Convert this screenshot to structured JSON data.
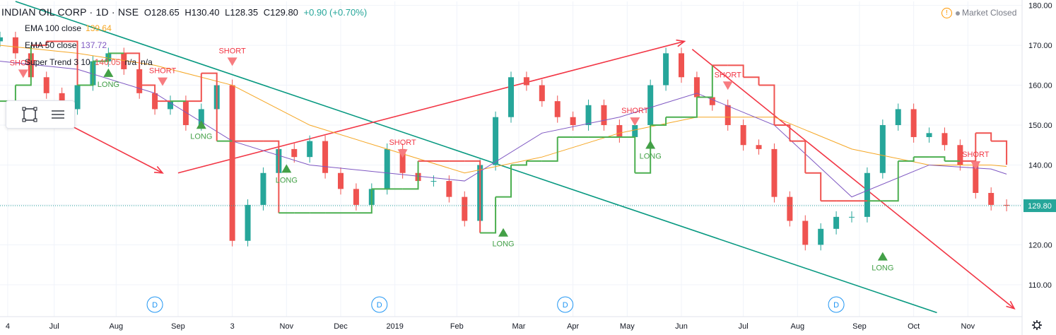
{
  "header": {
    "symbol": "INDIAN OIL CORP · 1D · NSE",
    "open": "O128.65",
    "high": "H130.40",
    "low": "L128.35",
    "close": "C129.80",
    "change": "+0.90 (+0.70%)"
  },
  "legend": [
    {
      "label": "EMA 100 close",
      "value": "139.64",
      "color": "#f5a623"
    },
    {
      "label": "EMA 50 close",
      "value": "137.72",
      "color": "#7e57c2"
    },
    {
      "label": "Super Trend 3 10",
      "value": "140.05",
      "extra": "n/a",
      "extra2": "n/a",
      "color": "#ef5350"
    }
  ],
  "market_status": "Market Closed",
  "colors": {
    "up": "#26a69a",
    "down": "#ef5350",
    "supertrend_up": "#4caf50",
    "supertrend_down": "#ef5350",
    "ema100": "#f5a623",
    "ema50": "#7e57c2",
    "trendline": "#089981",
    "arrow": "#f23645",
    "bg": "#ffffff"
  },
  "icons": [
    "rectangle-tool-icon",
    "hamburger-menu-icon",
    "gear-icon",
    "warning-icon"
  ],
  "chart_data": {
    "type": "line",
    "title": "INDIAN OIL CORP · 1D · NSE",
    "ylim": [
      102,
      181
    ],
    "y_ticks": [
      110,
      120,
      130,
      140,
      150,
      160,
      170,
      180
    ],
    "y_tick_labels": [
      "110.00",
      "120.00",
      "130.00",
      "140.00",
      "150.00",
      "160.00",
      "170.00",
      "180.00"
    ],
    "x_ticks": [
      "4",
      "Jul",
      "Aug",
      "Sep",
      "3",
      "Nov",
      "Dec",
      "2019",
      "Feb",
      "Mar",
      "Apr",
      "May",
      "Jun",
      "Jul",
      "Aug",
      "Sep",
      "Oct",
      "Nov"
    ],
    "x_tick_pos": [
      0.5,
      3.5,
      7.5,
      11.5,
      15.0,
      18.5,
      22.0,
      25.5,
      29.5,
      33.5,
      37.0,
      40.5,
      44.0,
      48.0,
      51.5,
      55.5,
      59.0,
      62.5
    ],
    "last_price": "129.80",
    "grid": true,
    "series": [
      {
        "name": "Price",
        "x": [
          0,
          1,
          2,
          3,
          4,
          5,
          6,
          7,
          8,
          9,
          10,
          11,
          12,
          13,
          14,
          15,
          16,
          17,
          18,
          19,
          20,
          21,
          22,
          23,
          24,
          25,
          26,
          27,
          28,
          29,
          30,
          31,
          32,
          33,
          34,
          35,
          36,
          37,
          38,
          39,
          40,
          41,
          42,
          43,
          44,
          45,
          46,
          47,
          48,
          49,
          50,
          51,
          52,
          53,
          54,
          55,
          56,
          57,
          58,
          59,
          60,
          61,
          62,
          63,
          64,
          65
        ],
        "y": [
          172,
          168,
          162,
          158,
          154,
          160,
          166,
          168,
          164,
          158,
          154,
          156,
          150,
          154,
          160,
          121,
          130,
          138,
          144,
          142,
          146,
          138,
          134,
          130,
          134,
          144,
          138,
          136,
          136,
          132,
          126,
          140,
          152,
          162,
          160,
          156,
          152,
          150,
          155,
          150,
          147,
          150,
          160,
          168,
          162,
          157,
          155,
          150,
          145,
          144,
          132,
          126,
          120,
          124,
          127,
          127,
          138,
          150,
          154,
          147,
          148,
          145,
          140,
          133,
          130,
          129.8
        ]
      },
      {
        "name": "EMA 100 close",
        "x": [
          0,
          5,
          10,
          15,
          20,
          25,
          30,
          35,
          40,
          45,
          50,
          55,
          60,
          64,
          65
        ],
        "y": [
          170,
          168,
          165,
          160,
          150,
          144,
          138,
          142,
          148,
          152,
          152,
          144,
          140,
          140,
          139.64
        ]
      },
      {
        "name": "EMA 50 close",
        "x": [
          0,
          5,
          10,
          15,
          20,
          25,
          30,
          35,
          40,
          45,
          50,
          55,
          60,
          64,
          65
        ],
        "y": [
          166,
          164,
          158,
          146,
          140,
          138,
          136,
          148,
          152,
          158,
          150,
          132,
          140,
          139,
          137.72
        ]
      },
      {
        "name": "Super Trend 3 10",
        "x": [
          0,
          1,
          2,
          3,
          4,
          5,
          6,
          7,
          8,
          9,
          10,
          11,
          12,
          13,
          14,
          15,
          16,
          17,
          18,
          19,
          20,
          21,
          22,
          23,
          24,
          25,
          26,
          27,
          28,
          29,
          30,
          31,
          32,
          33,
          34,
          35,
          36,
          37,
          38,
          39,
          40,
          41,
          42,
          43,
          44,
          45,
          46,
          47,
          48,
          49,
          50,
          51,
          52,
          53,
          54,
          55,
          56,
          57,
          58,
          59,
          60,
          61,
          62,
          63,
          64,
          65
        ],
        "y": [
          156,
          160,
          170,
          171,
          171,
          160,
          166,
          168,
          168,
          160,
          156,
          156,
          156,
          163,
          146,
          146,
          146,
          146,
          128,
          128,
          128,
          128,
          128,
          128,
          134,
          134,
          134,
          141,
          141,
          141,
          141,
          123,
          132,
          140,
          141,
          141,
          147,
          147,
          147,
          147,
          147,
          138,
          150,
          152,
          152,
          157,
          165,
          165,
          162,
          160,
          150,
          146,
          138,
          131,
          131,
          131,
          131,
          131,
          141,
          142,
          142,
          141,
          141,
          148,
          146,
          140.05
        ]
      }
    ],
    "annotations": [
      {
        "text": "SHORT",
        "x": 1.5,
        "y": 165
      },
      {
        "text": "LONG",
        "x": 7.0,
        "y": 161
      },
      {
        "text": "SHORT",
        "x": 10.5,
        "y": 163
      },
      {
        "text": "LONG",
        "x": 13.0,
        "y": 148
      },
      {
        "text": "SHORT",
        "x": 15.0,
        "y": 168
      },
      {
        "text": "LONG",
        "x": 18.5,
        "y": 137
      },
      {
        "text": "SHORT",
        "x": 26.0,
        "y": 145
      },
      {
        "text": "LONG",
        "x": 32.5,
        "y": 121
      },
      {
        "text": "SHORT",
        "x": 41.0,
        "y": 153
      },
      {
        "text": "LONG",
        "x": 42.0,
        "y": 143
      },
      {
        "text": "SHORT",
        "x": 47.0,
        "y": 162
      },
      {
        "text": "LONG",
        "x": 57.0,
        "y": 115
      },
      {
        "text": "SHORT",
        "x": 63.0,
        "y": 142
      }
    ],
    "event_markers": {
      "label": "D",
      "x": [
        10.0,
        24.5,
        36.5,
        54.0
      ]
    }
  }
}
